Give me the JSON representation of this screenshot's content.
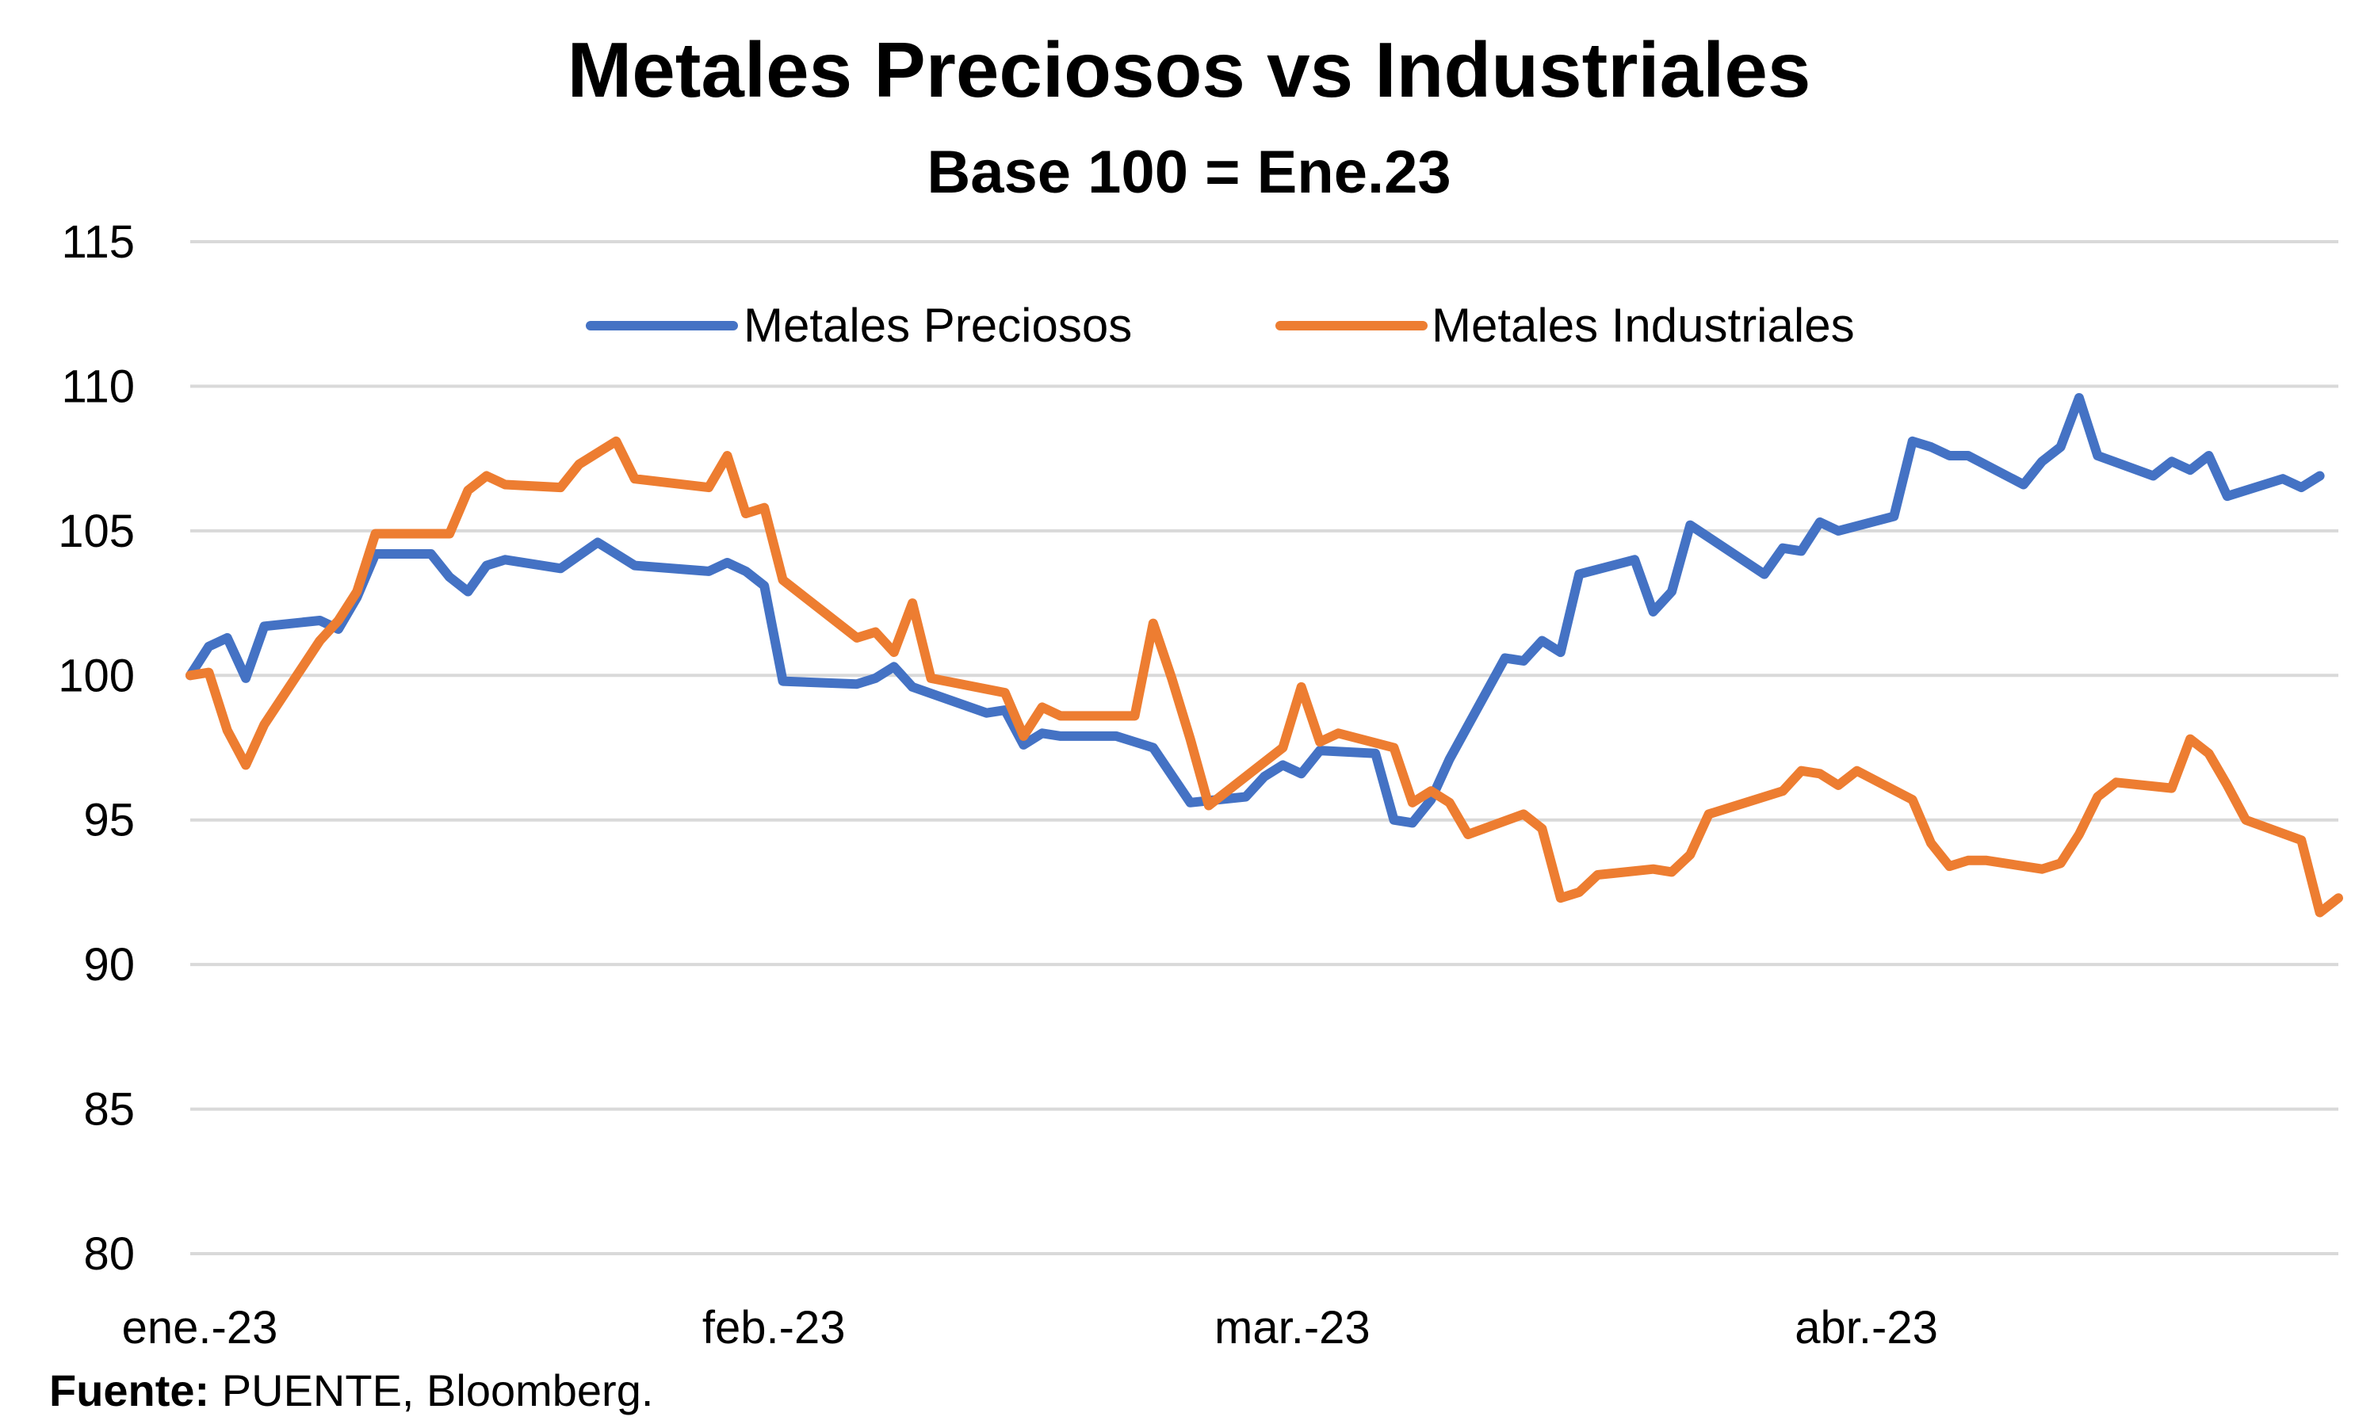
{
  "chart_data": {
    "type": "line",
    "title": "Metales Preciosos vs Industriales",
    "subtitle": "Base 100 = Ene.23",
    "xlabel": "",
    "ylabel": "",
    "ylim": [
      80,
      115
    ],
    "yticks": [
      80,
      85,
      90,
      95,
      100,
      105,
      110,
      115
    ],
    "x_range": [
      "2023-01-01",
      "2023-04-27"
    ],
    "xticks": [
      {
        "date": "2023-01-01",
        "label": "ene.-23"
      },
      {
        "date": "2023-02-01",
        "label": "feb.-23"
      },
      {
        "date": "2023-03-01",
        "label": "mar.-23"
      },
      {
        "date": "2023-04-01",
        "label": "abr.-23"
      }
    ],
    "grid": true,
    "legend_position": "top-center",
    "series": [
      {
        "name": "Metales Preciosos",
        "color": "#4472C4",
        "points": [
          [
            "2023-01-01",
            100.0
          ],
          [
            "2023-01-02",
            101.0
          ],
          [
            "2023-01-03",
            101.3
          ],
          [
            "2023-01-04",
            99.9
          ],
          [
            "2023-01-05",
            101.7
          ],
          [
            "2023-01-08",
            101.9
          ],
          [
            "2023-01-09",
            101.6
          ],
          [
            "2023-01-10",
            102.7
          ],
          [
            "2023-01-11",
            104.2
          ],
          [
            "2023-01-14",
            104.2
          ],
          [
            "2023-01-15",
            103.4
          ],
          [
            "2023-01-16",
            102.9
          ],
          [
            "2023-01-17",
            103.8
          ],
          [
            "2023-01-18",
            104.0
          ],
          [
            "2023-01-21",
            103.7
          ],
          [
            "2023-01-23",
            104.6
          ],
          [
            "2023-01-25",
            103.8
          ],
          [
            "2023-01-29",
            103.6
          ],
          [
            "2023-01-30",
            103.9
          ],
          [
            "2023-01-31",
            103.6
          ],
          [
            "2023-02-01",
            103.1
          ],
          [
            "2023-02-02",
            99.8
          ],
          [
            "2023-02-06",
            99.7
          ],
          [
            "2023-02-07",
            99.9
          ],
          [
            "2023-02-08",
            100.3
          ],
          [
            "2023-02-09",
            99.6
          ],
          [
            "2023-02-13",
            98.7
          ],
          [
            "2023-02-14",
            98.8
          ],
          [
            "2023-02-15",
            97.6
          ],
          [
            "2023-02-16",
            98.0
          ],
          [
            "2023-02-17",
            97.9
          ],
          [
            "2023-02-20",
            97.9
          ],
          [
            "2023-02-21",
            97.7
          ],
          [
            "2023-02-22",
            97.5
          ],
          [
            "2023-02-24",
            95.6
          ],
          [
            "2023-02-27",
            95.8
          ],
          [
            "2023-02-28",
            96.5
          ],
          [
            "2023-03-01",
            96.9
          ],
          [
            "2023-03-02",
            96.6
          ],
          [
            "2023-03-03",
            97.4
          ],
          [
            "2023-03-06",
            97.3
          ],
          [
            "2023-03-07",
            95.0
          ],
          [
            "2023-03-08",
            94.9
          ],
          [
            "2023-03-09",
            95.7
          ],
          [
            "2023-03-10",
            97.1
          ],
          [
            "2023-03-13",
            100.6
          ],
          [
            "2023-03-14",
            100.5
          ],
          [
            "2023-03-15",
            101.2
          ],
          [
            "2023-03-16",
            100.8
          ],
          [
            "2023-03-17",
            103.5
          ],
          [
            "2023-03-20",
            104.0
          ],
          [
            "2023-03-21",
            102.2
          ],
          [
            "2023-03-22",
            102.9
          ],
          [
            "2023-03-23",
            105.2
          ],
          [
            "2023-03-27",
            103.5
          ],
          [
            "2023-03-28",
            104.4
          ],
          [
            "2023-03-29",
            104.3
          ],
          [
            "2023-03-30",
            105.3
          ],
          [
            "2023-03-31",
            105.0
          ],
          [
            "2023-04-03",
            105.5
          ],
          [
            "2023-04-04",
            108.1
          ],
          [
            "2023-04-05",
            107.9
          ],
          [
            "2023-04-06",
            107.6
          ],
          [
            "2023-04-07",
            107.6
          ],
          [
            "2023-04-10",
            106.6
          ],
          [
            "2023-04-11",
            107.4
          ],
          [
            "2023-04-12",
            107.9
          ],
          [
            "2023-04-13",
            109.6
          ],
          [
            "2023-04-14",
            107.6
          ],
          [
            "2023-04-17",
            106.9
          ],
          [
            "2023-04-18",
            107.4
          ],
          [
            "2023-04-19",
            107.1
          ],
          [
            "2023-04-20",
            107.6
          ],
          [
            "2023-04-21",
            106.2
          ],
          [
            "2023-04-24",
            106.8
          ],
          [
            "2023-04-25",
            106.5
          ],
          [
            "2023-04-26",
            106.9
          ]
        ]
      },
      {
        "name": "Metales Industriales",
        "color": "#ED7D31",
        "points": [
          [
            "2023-01-01",
            100.0
          ],
          [
            "2023-01-02",
            100.1
          ],
          [
            "2023-01-03",
            98.1
          ],
          [
            "2023-01-04",
            96.9
          ],
          [
            "2023-01-05",
            98.3
          ],
          [
            "2023-01-08",
            101.2
          ],
          [
            "2023-01-09",
            101.9
          ],
          [
            "2023-01-10",
            102.9
          ],
          [
            "2023-01-11",
            104.9
          ],
          [
            "2023-01-15",
            104.9
          ],
          [
            "2023-01-16",
            106.4
          ],
          [
            "2023-01-17",
            106.9
          ],
          [
            "2023-01-18",
            106.6
          ],
          [
            "2023-01-21",
            106.5
          ],
          [
            "2023-01-22",
            107.3
          ],
          [
            "2023-01-24",
            108.1
          ],
          [
            "2023-01-25",
            106.8
          ],
          [
            "2023-01-29",
            106.5
          ],
          [
            "2023-01-30",
            107.6
          ],
          [
            "2023-01-31",
            105.6
          ],
          [
            "2023-02-01",
            105.8
          ],
          [
            "2023-02-02",
            103.3
          ],
          [
            "2023-02-06",
            101.3
          ],
          [
            "2023-02-07",
            101.5
          ],
          [
            "2023-02-08",
            100.8
          ],
          [
            "2023-02-09",
            102.5
          ],
          [
            "2023-02-10",
            99.9
          ],
          [
            "2023-02-14",
            99.4
          ],
          [
            "2023-02-15",
            97.9
          ],
          [
            "2023-02-16",
            98.9
          ],
          [
            "2023-02-17",
            98.6
          ],
          [
            "2023-02-21",
            98.6
          ],
          [
            "2023-02-22",
            101.8
          ],
          [
            "2023-02-23",
            99.9
          ],
          [
            "2023-02-24",
            97.8
          ],
          [
            "2023-02-25",
            95.5
          ],
          [
            "2023-02-28",
            97.0
          ],
          [
            "2023-03-01",
            97.5
          ],
          [
            "2023-03-02",
            99.6
          ],
          [
            "2023-03-03",
            97.7
          ],
          [
            "2023-03-04",
            98.0
          ],
          [
            "2023-03-07",
            97.5
          ],
          [
            "2023-03-08",
            95.6
          ],
          [
            "2023-03-09",
            96.0
          ],
          [
            "2023-03-10",
            95.6
          ],
          [
            "2023-03-11",
            94.5
          ],
          [
            "2023-03-14",
            95.2
          ],
          [
            "2023-03-15",
            94.7
          ],
          [
            "2023-03-16",
            92.3
          ],
          [
            "2023-03-17",
            92.5
          ],
          [
            "2023-03-18",
            93.1
          ],
          [
            "2023-03-21",
            93.3
          ],
          [
            "2023-03-22",
            93.2
          ],
          [
            "2023-03-23",
            93.8
          ],
          [
            "2023-03-24",
            95.2
          ],
          [
            "2023-03-28",
            96.0
          ],
          [
            "2023-03-29",
            96.7
          ],
          [
            "2023-03-30",
            96.6
          ],
          [
            "2023-03-31",
            96.2
          ],
          [
            "2023-04-01",
            96.7
          ],
          [
            "2023-04-04",
            95.7
          ],
          [
            "2023-04-05",
            94.2
          ],
          [
            "2023-04-06",
            93.4
          ],
          [
            "2023-04-07",
            93.6
          ],
          [
            "2023-04-08",
            93.6
          ],
          [
            "2023-04-11",
            93.3
          ],
          [
            "2023-04-12",
            93.5
          ],
          [
            "2023-04-13",
            94.5
          ],
          [
            "2023-04-14",
            95.8
          ],
          [
            "2023-04-15",
            96.3
          ],
          [
            "2023-04-18",
            96.1
          ],
          [
            "2023-04-19",
            97.8
          ],
          [
            "2023-04-20",
            97.3
          ],
          [
            "2023-04-21",
            96.2
          ],
          [
            "2023-04-22",
            95.0
          ],
          [
            "2023-04-25",
            94.3
          ],
          [
            "2023-04-26",
            91.8
          ],
          [
            "2023-04-27",
            92.3
          ]
        ]
      }
    ]
  },
  "source": {
    "label": "Fuente:",
    "text": " PUENTE, Bloomberg."
  }
}
